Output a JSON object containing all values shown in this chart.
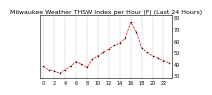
{
  "title": "Milwaukee Weather THSW Index per Hour (F) (Last 24 Hours)",
  "x_values": [
    0,
    1,
    2,
    3,
    4,
    5,
    6,
    7,
    8,
    9,
    10,
    11,
    12,
    13,
    14,
    15,
    16,
    17,
    18,
    19,
    20,
    21,
    22,
    23
  ],
  "y_values": [
    38,
    35,
    34,
    32,
    35,
    38,
    42,
    40,
    37,
    44,
    47,
    50,
    53,
    56,
    58,
    62,
    76,
    68,
    54,
    50,
    47,
    45,
    43,
    41
  ],
  "line_color": "#dd0000",
  "marker_color": "#000000",
  "background_color": "#ffffff",
  "grid_color": "#aaaaaa",
  "ylim": [
    28,
    82
  ],
  "xlim": [
    -0.5,
    23.5
  ],
  "yticks": [
    30,
    40,
    50,
    60,
    70,
    80
  ],
  "ytick_labels": [
    "30",
    "40",
    "50",
    "60",
    "70",
    "80"
  ],
  "xtick_positions": [
    0,
    2,
    4,
    6,
    8,
    10,
    12,
    14,
    16,
    18,
    20,
    22
  ],
  "title_fontsize": 4.5,
  "tick_fontsize": 3.5
}
